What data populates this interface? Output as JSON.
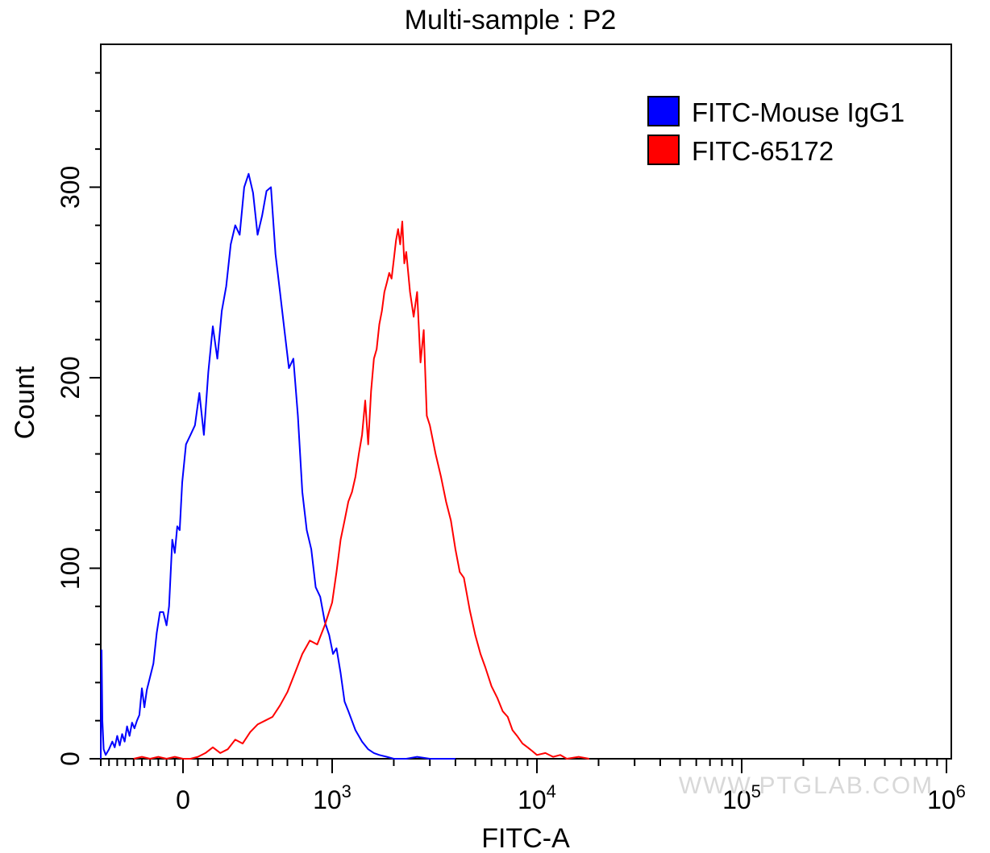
{
  "chart_data": {
    "type": "line",
    "title": "Multi-sample : P2",
    "xlabel": "FITC-A",
    "ylabel": "Count",
    "x_scale": "biexponential",
    "xlim": [
      -1000,
      1000000
    ],
    "ylim": [
      0,
      375
    ],
    "y_ticks": [
      0,
      100,
      200,
      300
    ],
    "x_tick_labels": [
      {
        "value": 0,
        "base": "0",
        "exp": ""
      },
      {
        "value": 1000,
        "base": "10",
        "exp": "3"
      },
      {
        "value": 10000,
        "base": "10",
        "exp": "4"
      },
      {
        "value": 100000,
        "base": "10",
        "exp": "5"
      },
      {
        "value": 1000000,
        "base": "10",
        "exp": "6"
      }
    ],
    "legend": {
      "position": "top-right"
    },
    "grid": false,
    "series": [
      {
        "name": "FITC-Mouse IgG1",
        "color": "#0000ff",
        "points": [
          [
            -1000,
            0
          ],
          [
            -990,
            57
          ],
          [
            -980,
            20
          ],
          [
            -965,
            5
          ],
          [
            -940,
            2
          ],
          [
            -900,
            5
          ],
          [
            -860,
            9
          ],
          [
            -830,
            6
          ],
          [
            -800,
            12
          ],
          [
            -770,
            7
          ],
          [
            -740,
            13
          ],
          [
            -710,
            9
          ],
          [
            -680,
            17
          ],
          [
            -650,
            12
          ],
          [
            -620,
            19
          ],
          [
            -590,
            16
          ],
          [
            -560,
            20
          ],
          [
            -530,
            23
          ],
          [
            -500,
            37
          ],
          [
            -470,
            27
          ],
          [
            -440,
            36
          ],
          [
            -400,
            43
          ],
          [
            -360,
            50
          ],
          [
            -320,
            66
          ],
          [
            -280,
            77
          ],
          [
            -240,
            77
          ],
          [
            -200,
            70
          ],
          [
            -170,
            80
          ],
          [
            -130,
            115
          ],
          [
            -100,
            108
          ],
          [
            -70,
            122
          ],
          [
            -40,
            120
          ],
          [
            -10,
            145
          ],
          [
            20,
            165
          ],
          [
            50,
            170
          ],
          [
            80,
            175
          ],
          [
            110,
            192
          ],
          [
            140,
            170
          ],
          [
            170,
            203
          ],
          [
            200,
            227
          ],
          [
            230,
            210
          ],
          [
            260,
            235
          ],
          [
            290,
            248
          ],
          [
            320,
            270
          ],
          [
            350,
            280
          ],
          [
            380,
            275
          ],
          [
            410,
            300
          ],
          [
            440,
            307
          ],
          [
            470,
            297
          ],
          [
            500,
            275
          ],
          [
            530,
            285
          ],
          [
            560,
            298
          ],
          [
            590,
            300
          ],
          [
            620,
            265
          ],
          [
            650,
            245
          ],
          [
            680,
            225
          ],
          [
            710,
            205
          ],
          [
            740,
            210
          ],
          [
            770,
            180
          ],
          [
            800,
            140
          ],
          [
            830,
            120
          ],
          [
            860,
            110
          ],
          [
            890,
            90
          ],
          [
            920,
            85
          ],
          [
            950,
            72
          ],
          [
            980,
            65
          ],
          [
            1010,
            55
          ],
          [
            1050,
            58
          ],
          [
            1100,
            45
          ],
          [
            1150,
            30
          ],
          [
            1200,
            25
          ],
          [
            1300,
            15
          ],
          [
            1400,
            9
          ],
          [
            1500,
            5
          ],
          [
            1600,
            3
          ],
          [
            1700,
            2
          ],
          [
            1850,
            1
          ],
          [
            2000,
            0
          ],
          [
            2300,
            0
          ],
          [
            2600,
            1
          ],
          [
            3000,
            0
          ],
          [
            4000,
            0
          ]
        ]
      },
      {
        "name": "FITC-65172",
        "color": "#ff0000",
        "points": [
          [
            -600,
            0
          ],
          [
            -500,
            1
          ],
          [
            -400,
            0
          ],
          [
            -300,
            1
          ],
          [
            -200,
            0
          ],
          [
            -100,
            1
          ],
          [
            0,
            0
          ],
          [
            50,
            0
          ],
          [
            100,
            1
          ],
          [
            150,
            3
          ],
          [
            200,
            6
          ],
          [
            250,
            3
          ],
          [
            300,
            5
          ],
          [
            350,
            10
          ],
          [
            400,
            8
          ],
          [
            450,
            14
          ],
          [
            500,
            18
          ],
          [
            550,
            20
          ],
          [
            600,
            22
          ],
          [
            650,
            28
          ],
          [
            700,
            35
          ],
          [
            750,
            45
          ],
          [
            800,
            55
          ],
          [
            850,
            62
          ],
          [
            900,
            60
          ],
          [
            950,
            70
          ],
          [
            1000,
            82
          ],
          [
            1050,
            98
          ],
          [
            1100,
            115
          ],
          [
            1150,
            125
          ],
          [
            1200,
            135
          ],
          [
            1250,
            140
          ],
          [
            1300,
            148
          ],
          [
            1350,
            160
          ],
          [
            1400,
            170
          ],
          [
            1450,
            188
          ],
          [
            1500,
            165
          ],
          [
            1550,
            193
          ],
          [
            1600,
            210
          ],
          [
            1650,
            215
          ],
          [
            1700,
            228
          ],
          [
            1750,
            235
          ],
          [
            1800,
            245
          ],
          [
            1850,
            250
          ],
          [
            1900,
            255
          ],
          [
            1950,
            252
          ],
          [
            2000,
            262
          ],
          [
            2050,
            272
          ],
          [
            2100,
            278
          ],
          [
            2150,
            270
          ],
          [
            2200,
            282
          ],
          [
            2250,
            260
          ],
          [
            2300,
            266
          ],
          [
            2400,
            245
          ],
          [
            2500,
            232
          ],
          [
            2600,
            245
          ],
          [
            2700,
            208
          ],
          [
            2800,
            225
          ],
          [
            2900,
            180
          ],
          [
            3000,
            175
          ],
          [
            3200,
            160
          ],
          [
            3400,
            148
          ],
          [
            3600,
            135
          ],
          [
            3800,
            125
          ],
          [
            4000,
            110
          ],
          [
            4200,
            98
          ],
          [
            4400,
            95
          ],
          [
            4700,
            78
          ],
          [
            5000,
            65
          ],
          [
            5300,
            55
          ],
          [
            5600,
            48
          ],
          [
            6000,
            38
          ],
          [
            6400,
            32
          ],
          [
            6800,
            25
          ],
          [
            7200,
            22
          ],
          [
            7600,
            15
          ],
          [
            8000,
            12
          ],
          [
            8500,
            8
          ],
          [
            9000,
            6
          ],
          [
            9500,
            4
          ],
          [
            10000,
            2
          ],
          [
            11000,
            3
          ],
          [
            12000,
            1
          ],
          [
            13000,
            2
          ],
          [
            14000,
            0
          ],
          [
            16000,
            1
          ],
          [
            18000,
            0
          ]
        ]
      }
    ]
  },
  "watermark": "WWW.PTGLAB.COM"
}
